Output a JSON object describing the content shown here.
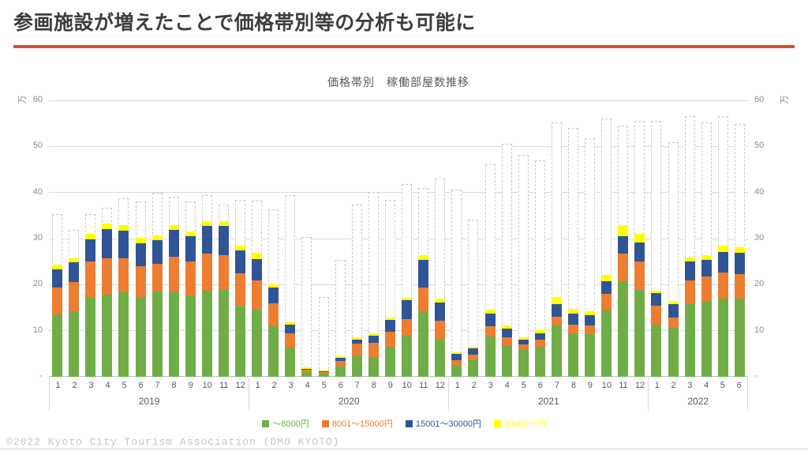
{
  "slide": {
    "title": "参画施設が増えたことで価格帯別等の分析も可能に",
    "accent_color": "#d3502f",
    "footer": "©2022 Kyoto City Tourism Association (DMO KYOTO)"
  },
  "chart_data": {
    "type": "bar",
    "stacked": true,
    "title": "価格帯別　稼働部屋数推移",
    "axis_unit": "万",
    "ylim": [
      0,
      60
    ],
    "ytick_labels": [
      "-",
      "10",
      "20",
      "30",
      "40",
      "50",
      "60"
    ],
    "grid": true,
    "legend_position": "bottom",
    "outline_color": "#c9c9c9",
    "series": [
      {
        "name": "～8000円",
        "color": "#70AD47"
      },
      {
        "name": "8001～15000円",
        "color": "#ED7D31"
      },
      {
        "name": "15001～30000円",
        "color": "#2F5597"
      },
      {
        "name": "30001～円",
        "color": "#FFFF00"
      }
    ],
    "years": [
      {
        "label": "2019",
        "months": [
          "1",
          "2",
          "3",
          "4",
          "5",
          "6",
          "7",
          "8",
          "9",
          "10",
          "11",
          "12"
        ]
      },
      {
        "label": "2020",
        "months": [
          "1",
          "2",
          "3",
          "4",
          "5",
          "6",
          "7",
          "8",
          "9",
          "10",
          "11",
          "12"
        ]
      },
      {
        "label": "2021",
        "months": [
          "1",
          "2",
          "3",
          "4",
          "5",
          "6",
          "7",
          "8",
          "9",
          "10",
          "11",
          "12"
        ]
      },
      {
        "label": "2022",
        "months": [
          "1",
          "2",
          "3",
          "4",
          "5",
          "6"
        ]
      }
    ],
    "bars": [
      {
        "year": "2019",
        "month": "1",
        "values": [
          13.5,
          5.9,
          3.9,
          1.0
        ],
        "total": 35.3
      },
      {
        "year": "2019",
        "month": "2",
        "values": [
          14.3,
          6.2,
          4.4,
          0.9
        ],
        "total": 31.9
      },
      {
        "year": "2019",
        "month": "3",
        "values": [
          17.2,
          7.9,
          4.8,
          1.2
        ],
        "total": 35.3
      },
      {
        "year": "2019",
        "month": "4",
        "values": [
          17.9,
          7.9,
          6.2,
          1.3
        ],
        "total": 36.7
      },
      {
        "year": "2019",
        "month": "5",
        "values": [
          18.3,
          7.4,
          6.0,
          1.2
        ],
        "total": 38.7
      },
      {
        "year": "2019",
        "month": "6",
        "values": [
          17.1,
          6.9,
          5.0,
          1.2
        ],
        "total": 38.0
      },
      {
        "year": "2019",
        "month": "7",
        "values": [
          18.6,
          6.0,
          5.1,
          1.0
        ],
        "total": 40.0
      },
      {
        "year": "2019",
        "month": "8",
        "values": [
          18.3,
          7.8,
          5.8,
          1.0
        ],
        "total": 39.1
      },
      {
        "year": "2019",
        "month": "9",
        "values": [
          17.7,
          7.4,
          5.4,
          1.0
        ],
        "total": 38.0
      },
      {
        "year": "2019",
        "month": "10",
        "values": [
          18.7,
          8.1,
          6.0,
          1.0
        ],
        "total": 39.4
      },
      {
        "year": "2019",
        "month": "11",
        "values": [
          19.1,
          7.3,
          6.3,
          1.0
        ],
        "total": 37.4
      },
      {
        "year": "2019",
        "month": "12",
        "values": [
          15.5,
          7.0,
          5.0,
          1.0
        ],
        "total": 38.4
      },
      {
        "year": "2020",
        "month": "1",
        "values": [
          14.6,
          6.3,
          4.6,
          1.4
        ],
        "total": 38.3
      },
      {
        "year": "2020",
        "month": "2",
        "values": [
          10.9,
          5.1,
          3.4,
          0.7
        ],
        "total": 36.3
      },
      {
        "year": "2020",
        "month": "3",
        "values": [
          6.3,
          3.2,
          1.8,
          0.5
        ],
        "total": 39.5
      },
      {
        "year": "2020",
        "month": "4",
        "values": [
          1.0,
          0.5,
          0.3,
          0.2
        ],
        "total": 30.3
      },
      {
        "year": "2020",
        "month": "5",
        "values": [
          0.7,
          0.3,
          0.2,
          0.1
        ],
        "total": 17.3
      },
      {
        "year": "2020",
        "month": "6",
        "values": [
          2.3,
          1.2,
          0.6,
          0.3
        ],
        "total": 25.3
      },
      {
        "year": "2020",
        "month": "7",
        "values": [
          4.6,
          2.6,
          0.9,
          0.4
        ],
        "total": 37.3
      },
      {
        "year": "2020",
        "month": "8",
        "values": [
          4.3,
          3.1,
          1.6,
          0.4
        ],
        "total": 40.1
      },
      {
        "year": "2020",
        "month": "9",
        "values": [
          6.6,
          3.1,
          2.7,
          0.5
        ],
        "total": 38.4
      },
      {
        "year": "2020",
        "month": "10",
        "values": [
          8.9,
          3.7,
          4.1,
          0.5
        ],
        "total": 41.8
      },
      {
        "year": "2020",
        "month": "11",
        "values": [
          14.0,
          5.4,
          6.0,
          1.0
        ],
        "total": 41.0
      },
      {
        "year": "2020",
        "month": "12",
        "values": [
          8.3,
          3.9,
          4.0,
          0.8
        ],
        "total": 43.0
      },
      {
        "year": "2021",
        "month": "1",
        "values": [
          2.6,
          1.0,
          1.3,
          0.4
        ],
        "total": 40.7
      },
      {
        "year": "2021",
        "month": "2",
        "values": [
          3.7,
          1.1,
          1.3,
          0.4
        ],
        "total": 34.1
      },
      {
        "year": "2021",
        "month": "3",
        "values": [
          8.8,
          2.2,
          2.7,
          0.9
        ],
        "total": 46.2
      },
      {
        "year": "2021",
        "month": "4",
        "values": [
          6.9,
          1.7,
          1.8,
          0.7
        ],
        "total": 50.5
      },
      {
        "year": "2021",
        "month": "5",
        "values": [
          5.8,
          1.3,
          1.0,
          0.5
        ],
        "total": 48.1
      },
      {
        "year": "2021",
        "month": "6",
        "values": [
          6.6,
          1.4,
          1.5,
          0.6
        ],
        "total": 47.0
      },
      {
        "year": "2021",
        "month": "7",
        "values": [
          11.2,
          1.9,
          2.7,
          1.5
        ],
        "total": 55.2
      },
      {
        "year": "2021",
        "month": "8",
        "values": [
          9.5,
          1.9,
          2.3,
          1.1
        ],
        "total": 54.0
      },
      {
        "year": "2021",
        "month": "9",
        "values": [
          9.3,
          1.9,
          2.1,
          0.9
        ],
        "total": 51.8
      },
      {
        "year": "2021",
        "month": "10",
        "values": [
          14.4,
          3.6,
          2.7,
          1.5
        ],
        "total": 56.0
      },
      {
        "year": "2021",
        "month": "11",
        "values": [
          20.6,
          6.2,
          3.8,
          2.3
        ],
        "total": 54.5
      },
      {
        "year": "2021",
        "month": "12",
        "values": [
          18.9,
          6.2,
          4.1,
          1.8
        ],
        "total": 55.6
      },
      {
        "year": "2022",
        "month": "1",
        "values": [
          11.4,
          4.0,
          2.7,
          0.6
        ],
        "total": 55.5
      },
      {
        "year": "2022",
        "month": "2",
        "values": [
          10.6,
          2.3,
          2.9,
          0.7
        ],
        "total": 51.0
      },
      {
        "year": "2022",
        "month": "3",
        "values": [
          16.0,
          4.9,
          4.2,
          0.8
        ],
        "total": 56.6
      },
      {
        "year": "2022",
        "month": "4",
        "values": [
          16.3,
          5.4,
          3.7,
          1.0
        ],
        "total": 55.2
      },
      {
        "year": "2022",
        "month": "5",
        "values": [
          17.0,
          5.7,
          4.4,
          1.3
        ],
        "total": 56.5
      },
      {
        "year": "2022",
        "month": "6",
        "values": [
          17.0,
          5.3,
          4.7,
          1.1
        ],
        "total": 54.9
      }
    ]
  }
}
